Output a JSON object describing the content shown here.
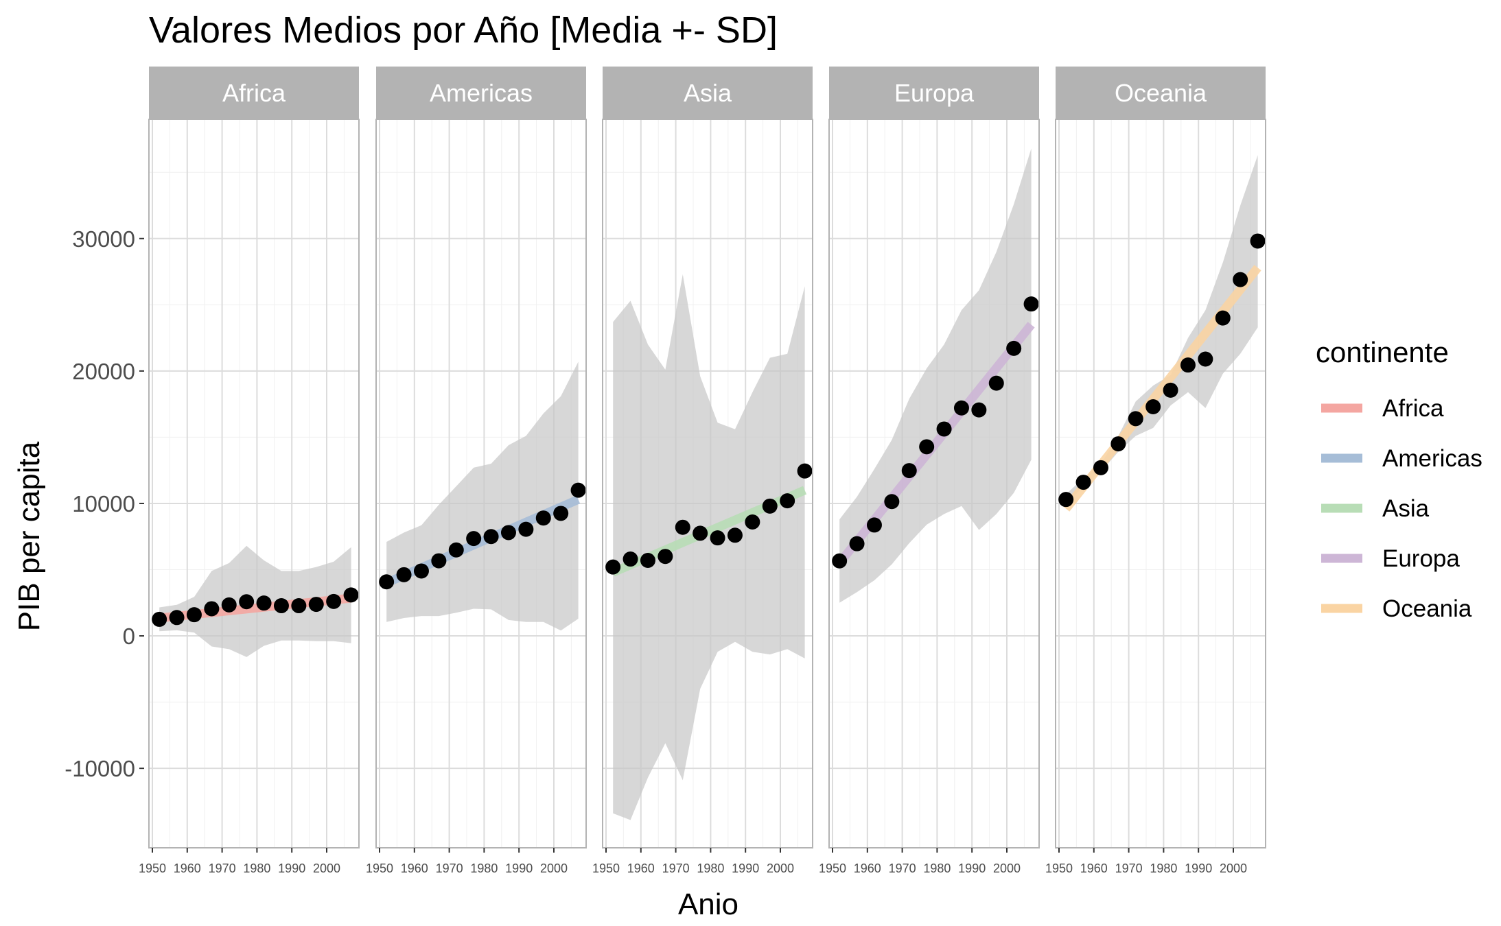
{
  "chart_data": {
    "type": "scatter",
    "title": "Valores Medios por Año [Media +- SD]",
    "xlabel": "Anio",
    "ylabel": "PIB per capita",
    "xlim": [
      1950,
      2010
    ],
    "ylim": [
      -16000,
      39000
    ],
    "y_ticks": [
      30000,
      20000,
      10000,
      0,
      -10000
    ],
    "y_tick_labels": [
      "30000",
      "20000",
      "10000",
      "0",
      "-10000"
    ],
    "x_ticks": [
      1950,
      1960,
      1970,
      1980,
      1990,
      2000
    ],
    "x_tick_labels": [
      "1950",
      "1960",
      "1970",
      "1980",
      "1990",
      "2000"
    ],
    "grid": true,
    "legend": {
      "title": "continente",
      "position": "right"
    },
    "years": [
      1952,
      1957,
      1962,
      1967,
      1972,
      1977,
      1982,
      1987,
      1992,
      1997,
      2002,
      2007
    ],
    "facets": [
      {
        "name": "Africa",
        "color": "#F4A6A1",
        "means": [
          1250,
          1385,
          1600,
          2050,
          2340,
          2580,
          2480,
          2280,
          2280,
          2380,
          2600,
          3090
        ],
        "upper": [
          2150,
          2350,
          2950,
          4900,
          5500,
          6800,
          5700,
          4900,
          4900,
          5200,
          5600,
          6700
        ],
        "lower": [
          350,
          420,
          250,
          -800,
          -1000,
          -1600,
          -750,
          -350,
          -350,
          -400,
          -400,
          -550
        ],
        "fit": [
          1350,
          2850
        ]
      },
      {
        "name": "Americas",
        "color": "#A6BDD7",
        "means": [
          4080,
          4620,
          4900,
          5670,
          6490,
          7350,
          7500,
          7800,
          8050,
          8900,
          9250,
          11000
        ],
        "upper": [
          7100,
          7800,
          8350,
          9900,
          11300,
          12700,
          13000,
          14400,
          15100,
          16800,
          18100,
          20700
        ],
        "lower": [
          1050,
          1350,
          1500,
          1500,
          1750,
          2050,
          2000,
          1200,
          1050,
          1050,
          400,
          1300
        ],
        "fit": [
          4000,
          10300
        ]
      },
      {
        "name": "Asia",
        "color": "#B8DDB6",
        "means": [
          5200,
          5800,
          5700,
          6000,
          8200,
          7750,
          7400,
          7600,
          8600,
          9800,
          10200,
          12450
        ],
        "upper": [
          23700,
          25300,
          22000,
          20100,
          27300,
          19600,
          16100,
          15600,
          18400,
          21000,
          21300,
          26400
        ],
        "lower": [
          -13400,
          -13900,
          -10700,
          -8100,
          -10900,
          -4000,
          -1200,
          -450,
          -1200,
          -1400,
          -1000,
          -1700
        ],
        "fit": [
          4800,
          11000
        ]
      },
      {
        "name": "Europa",
        "color": "#CDB6D6",
        "means": [
          5660,
          6960,
          8370,
          10140,
          12480,
          14280,
          15620,
          17210,
          17060,
          19080,
          21710,
          25060
        ],
        "upper": [
          8800,
          10500,
          12600,
          14800,
          17900,
          20200,
          22000,
          24600,
          26100,
          29000,
          32600,
          36800
        ],
        "lower": [
          2500,
          3300,
          4200,
          5400,
          7000,
          8400,
          9200,
          9800,
          8000,
          9200,
          10800,
          13300
        ],
        "fit": [
          5500,
          23500
        ]
      },
      {
        "name": "Oceania",
        "color": "#FAD4A3",
        "means": [
          10300,
          11600,
          12700,
          14500,
          16400,
          17300,
          18550,
          20450,
          20900,
          24000,
          26900,
          29810
        ],
        "upper": [
          10700,
          11900,
          13000,
          15100,
          17700,
          18900,
          19700,
          22500,
          24600,
          28200,
          32500,
          36300
        ],
        "lower": [
          9900,
          11300,
          12400,
          13900,
          15100,
          15700,
          17400,
          18400,
          17200,
          19800,
          21300,
          23300
        ],
        "fit": [
          9600,
          27800
        ]
      }
    ]
  }
}
